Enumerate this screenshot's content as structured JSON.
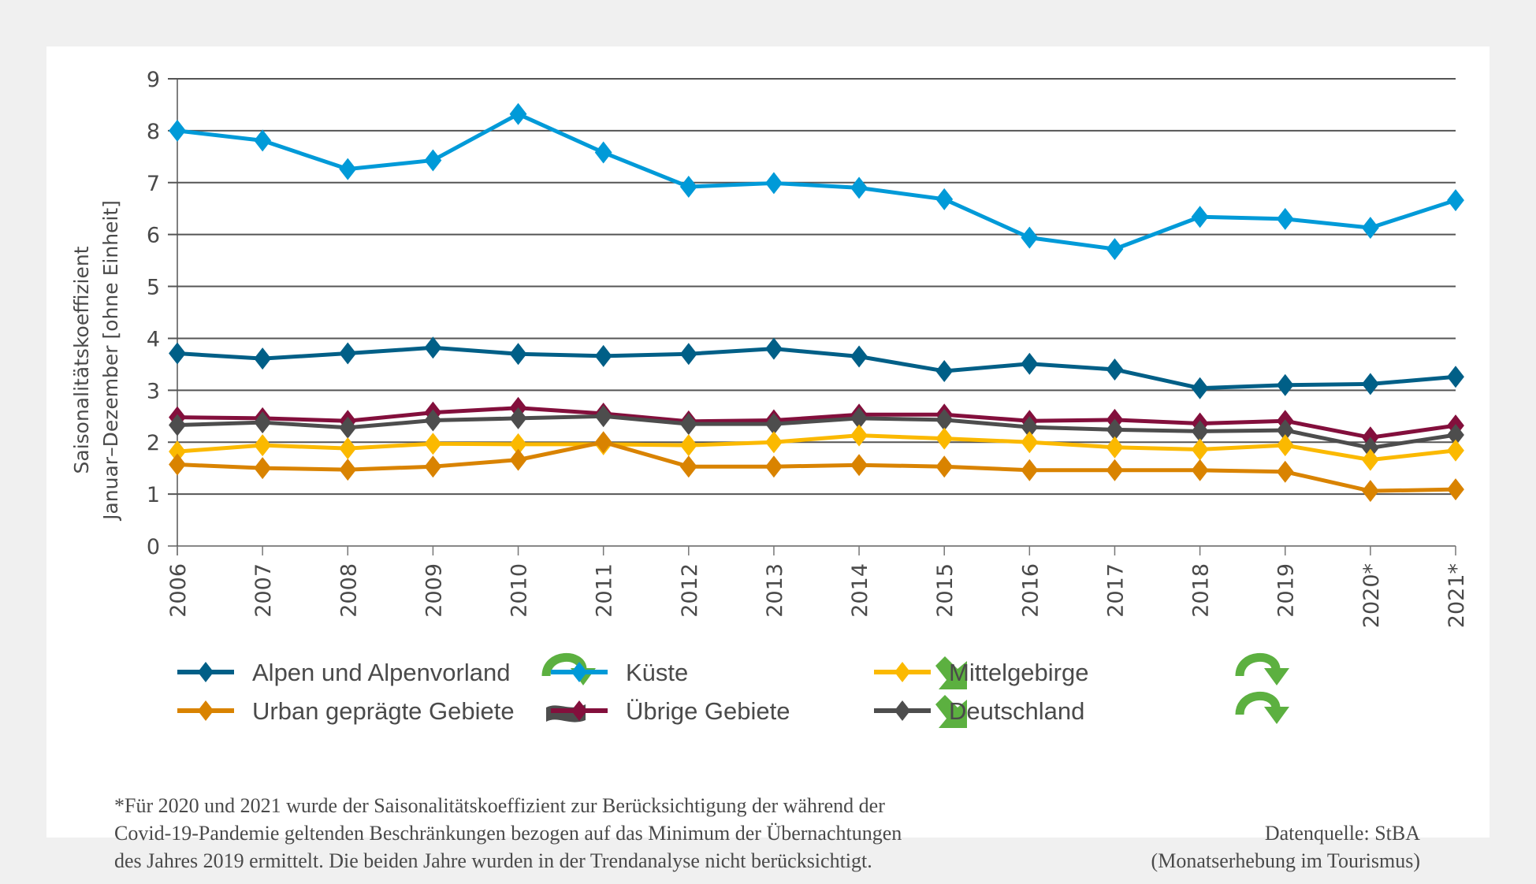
{
  "chart_data": {
    "type": "line",
    "title": "",
    "ylabel_lines": [
      "Saisonalitätskoeffizient",
      "Januar–Dezember [ohne Einheit]"
    ],
    "xlabel": "",
    "categories": [
      "2006",
      "2007",
      "2008",
      "2009",
      "2010",
      "2011",
      "2012",
      "2013",
      "2014",
      "2015",
      "2016",
      "2017",
      "2018",
      "2019",
      "2020*",
      "2021*"
    ],
    "ylim": [
      0,
      9
    ],
    "yticks": [
      "0",
      "1",
      "2",
      "3",
      "4",
      "5",
      "6",
      "7",
      "8",
      "9"
    ],
    "grid": true,
    "legend_position": "bottom",
    "series": [
      {
        "name": "Alpen und Alpenvorland",
        "color": "#005f87",
        "trend_icon": "curved-arrow-down-icon",
        "values": [
          3.71,
          3.61,
          3.71,
          3.82,
          3.7,
          3.66,
          3.7,
          3.8,
          3.65,
          3.37,
          3.51,
          3.4,
          3.04,
          3.1,
          3.12,
          3.26
        ]
      },
      {
        "name": "Küste",
        "color": "#009ad8",
        "trend_icon": "diagonal-arrow-down-icon",
        "values": [
          8.0,
          7.81,
          7.26,
          7.43,
          8.32,
          7.58,
          6.92,
          6.99,
          6.9,
          6.68,
          5.94,
          5.72,
          6.34,
          6.3,
          6.13,
          6.66
        ]
      },
      {
        "name": "Mittelgebirge",
        "color": "#fbb900",
        "trend_icon": "curved-arrow-down-icon",
        "values": [
          1.82,
          1.94,
          1.88,
          1.97,
          1.96,
          1.96,
          1.94,
          2.0,
          2.13,
          2.07,
          2.0,
          1.9,
          1.86,
          1.94,
          1.66,
          1.84
        ]
      },
      {
        "name": "Urban geprägte Gebiete",
        "color": "#d98300",
        "trend_icon": "wave-icon",
        "values": [
          1.57,
          1.5,
          1.47,
          1.53,
          1.66,
          2.0,
          1.53,
          1.53,
          1.56,
          1.53,
          1.46,
          1.46,
          1.46,
          1.43,
          1.06,
          1.09
        ]
      },
      {
        "name": "Übrige Gebiete",
        "color": "#830f3c",
        "trend_icon": "diagonal-arrow-down-icon",
        "values": [
          2.48,
          2.46,
          2.41,
          2.57,
          2.66,
          2.55,
          2.4,
          2.42,
          2.53,
          2.53,
          2.41,
          2.43,
          2.36,
          2.41,
          2.09,
          2.32
        ]
      },
      {
        "name": "Deutschland",
        "color": "#4d4d4d",
        "trend_icon": "curved-arrow-down-icon",
        "values": [
          2.33,
          2.38,
          2.28,
          2.42,
          2.46,
          2.5,
          2.35,
          2.35,
          2.46,
          2.43,
          2.29,
          2.24,
          2.21,
          2.23,
          1.89,
          2.14
        ]
      }
    ]
  },
  "legend": [
    {
      "label": "Alpen und Alpenvorland",
      "color": "#005f87",
      "icon": "curved-arrow-down-icon"
    },
    {
      "label": "Küste",
      "color": "#009ad8",
      "icon": "diagonal-arrow-down-icon"
    },
    {
      "label": "Mittelgebirge",
      "color": "#fbb900",
      "icon": "curved-arrow-down-icon"
    },
    {
      "label": "Urban geprägte Gebiete",
      "color": "#d98300",
      "icon": "wave-icon"
    },
    {
      "label": "Übrige Gebiete",
      "color": "#830f3c",
      "icon": "diagonal-arrow-down-icon"
    },
    {
      "label": "Deutschland",
      "color": "#4d4d4d",
      "icon": "curved-arrow-down-icon"
    }
  ],
  "colors": {
    "trend_green": "#5cb040",
    "trend_grey": "#4d4d4d",
    "gridline": "#555555",
    "axis": "#777777"
  },
  "footnote": {
    "lines": [
      "*Für 2020 und 2021 wurde der Saisonalitätskoeffizient zur Berücksichtigung der während der",
      "Covid-19-Pandemie geltenden Beschränkungen bezogen auf das Minimum der Übernachtungen",
      "des Jahres 2019 ermittelt. Die beiden Jahre wurden in der Trendanalyse nicht berücksichtigt."
    ]
  },
  "source": {
    "lines": [
      "Datenquelle: StBA",
      "(Monatserhebung im Tourismus)"
    ]
  }
}
